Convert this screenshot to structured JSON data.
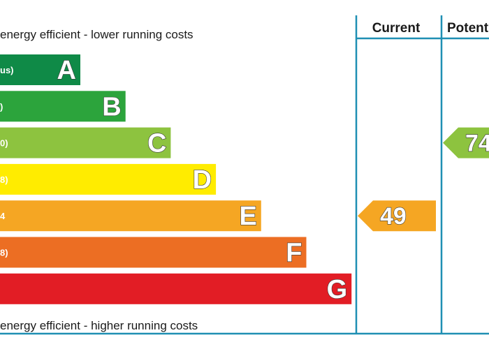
{
  "chart_data": {
    "type": "bar",
    "top_caption": "energy efficient - lower running costs",
    "bottom_caption": "energy efficient - higher running costs",
    "bands": [
      {
        "letter": "A",
        "range": "us)",
        "color": "#0f8a47",
        "rank": 1
      },
      {
        "letter": "B",
        "range": ")",
        "color": "#2ca43c",
        "rank": 2
      },
      {
        "letter": "C",
        "range": "0)",
        "color": "#8dc33f",
        "rank": 3
      },
      {
        "letter": "D",
        "range": "8)",
        "color": "#ffec00",
        "rank": 4
      },
      {
        "letter": "E",
        "range": "4",
        "color": "#f5a623",
        "rank": 5
      },
      {
        "letter": "F",
        "range": "8)",
        "color": "#ec6e23",
        "rank": 6
      },
      {
        "letter": "G",
        "range": "",
        "color": "#e21d25",
        "rank": 7
      }
    ],
    "columns": [
      {
        "header": "Current",
        "value": "49",
        "band": "E",
        "color": "#f5a623"
      },
      {
        "header": "Potent",
        "value": "74",
        "band": "C",
        "color": "#8dc33f"
      }
    ]
  }
}
